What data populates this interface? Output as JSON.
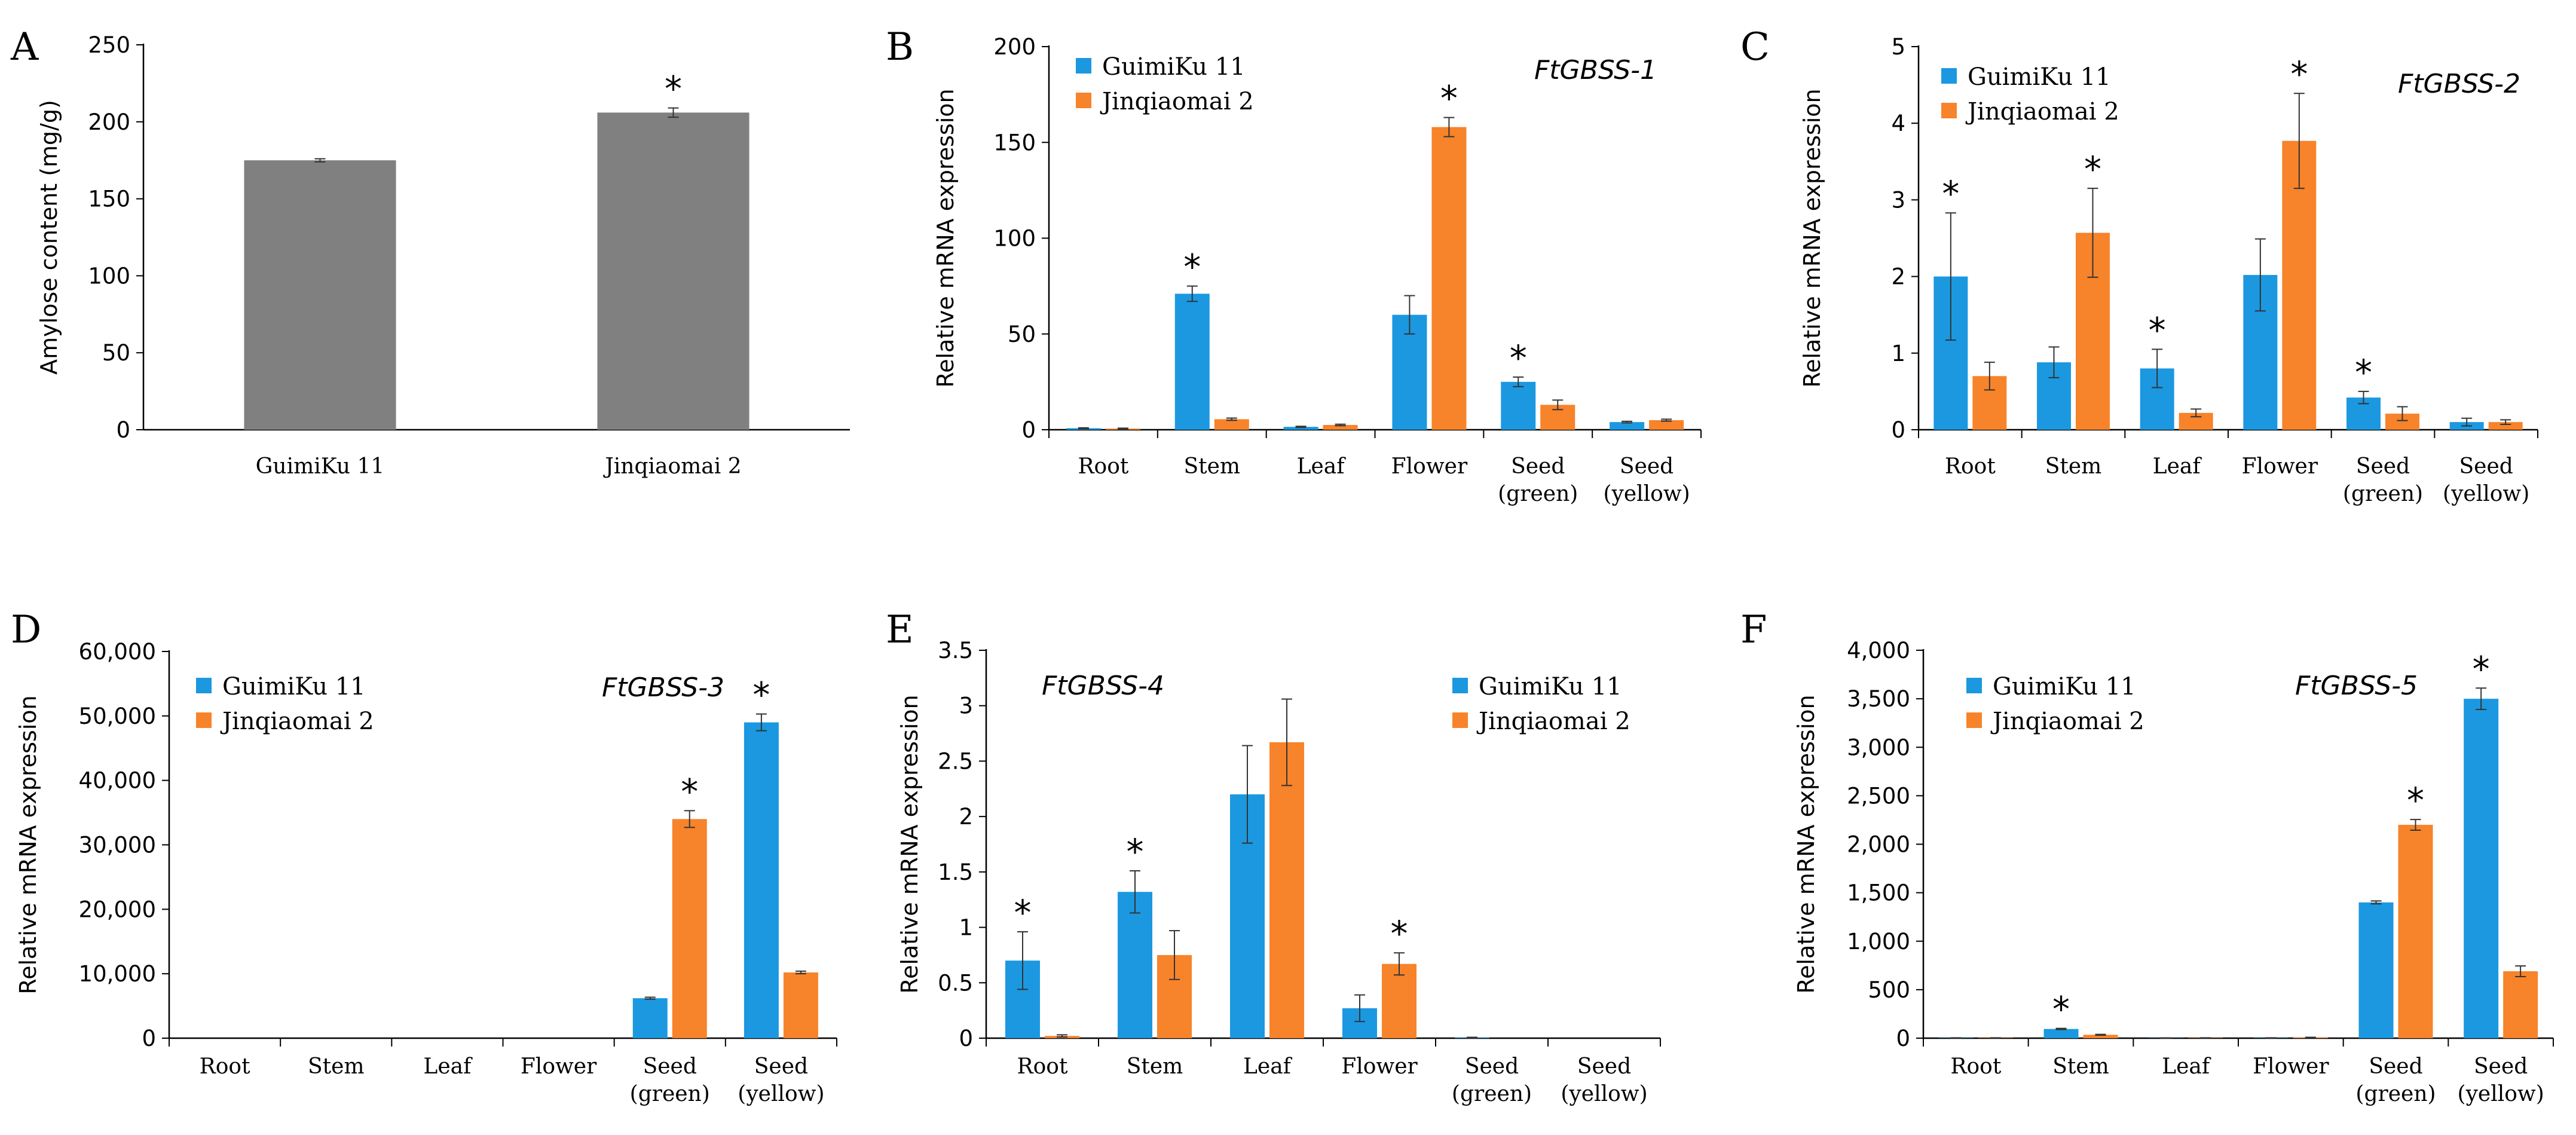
{
  "colors": {
    "guimiku": "#1b98e0",
    "jinqiaomai": "#f7832a",
    "amylose": "#808080",
    "axis": "#000000"
  },
  "legend": {
    "series1": "GuimiKu 11",
    "series2": "Jinqiaomai 2"
  },
  "chart_data": [
    {
      "id": "A",
      "letter": "A",
      "type": "bar",
      "title": "",
      "ylabel": "Amylose content (mg/g)",
      "ylim": [
        0,
        250
      ],
      "ticks": [
        0,
        50,
        100,
        150,
        200,
        250
      ],
      "tick_labels": [
        "0",
        "50",
        "100",
        "150",
        "200",
        "250"
      ],
      "categories": [
        [
          "GuimiKu 11"
        ],
        [
          "Jinqiaomai 2"
        ]
      ],
      "series": [
        {
          "name": "Amylose",
          "color": "#808080",
          "values": [
            175,
            206
          ],
          "errors": [
            1,
            3
          ],
          "stars": [
            false,
            true
          ]
        }
      ]
    },
    {
      "id": "B",
      "letter": "B",
      "type": "bar",
      "title": "FtGBSS-1",
      "ylabel": "Relative mRNA expression",
      "ylim": [
        0,
        200
      ],
      "ticks": [
        0,
        50,
        100,
        150,
        200
      ],
      "tick_labels": [
        "0",
        "50",
        "100",
        "150",
        "200"
      ],
      "categories": [
        [
          "Root"
        ],
        [
          "Stem"
        ],
        [
          "Leaf"
        ],
        [
          "Flower"
        ],
        [
          "Seed",
          "(green)"
        ],
        [
          "Seed",
          "(yellow)"
        ]
      ],
      "series": [
        {
          "name": "GuimiKu 11",
          "values": [
            0.8,
            71,
            1.5,
            60,
            25,
            4
          ],
          "errors": [
            0.2,
            4,
            0.3,
            10,
            2.5,
            0.4
          ],
          "stars": [
            false,
            true,
            false,
            false,
            true,
            false
          ]
        },
        {
          "name": "Jinqiaomai 2",
          "values": [
            0.6,
            5.5,
            2.5,
            158,
            13,
            5
          ],
          "errors": [
            0.2,
            0.6,
            0.4,
            5,
            2.5,
            0.5
          ],
          "stars": [
            false,
            false,
            false,
            true,
            false,
            false
          ]
        }
      ]
    },
    {
      "id": "C",
      "letter": "C",
      "type": "bar",
      "title": "FtGBSS-2",
      "ylabel": "Relative mRNA expression",
      "ylim": [
        0,
        5
      ],
      "ticks": [
        0,
        1,
        2,
        3,
        4,
        5
      ],
      "tick_labels": [
        "0",
        "1",
        "2",
        "3",
        "4",
        "5"
      ],
      "categories": [
        [
          "Root"
        ],
        [
          "Stem"
        ],
        [
          "Leaf"
        ],
        [
          "Flower"
        ],
        [
          "Seed",
          "(green)"
        ],
        [
          "Seed",
          "(yellow)"
        ]
      ],
      "series": [
        {
          "name": "GuimiKu 11",
          "values": [
            2.0,
            0.88,
            0.8,
            2.02,
            0.42,
            0.1
          ],
          "errors": [
            0.83,
            0.2,
            0.25,
            0.47,
            0.08,
            0.05
          ],
          "stars": [
            true,
            false,
            true,
            false,
            true,
            false
          ]
        },
        {
          "name": "Jinqiaomai 2",
          "values": [
            0.7,
            2.57,
            0.22,
            3.77,
            0.21,
            0.1
          ],
          "errors": [
            0.18,
            0.58,
            0.05,
            0.62,
            0.09,
            0.03
          ],
          "stars": [
            false,
            true,
            false,
            true,
            false,
            false
          ]
        }
      ]
    },
    {
      "id": "D",
      "letter": "D",
      "type": "bar",
      "title": "FtGBSS-3",
      "ylabel": "Relative mRNA expression",
      "ylim": [
        0,
        60000
      ],
      "ticks": [
        0,
        10000,
        20000,
        30000,
        40000,
        50000,
        60000
      ],
      "tick_labels": [
        "0",
        "10,000",
        "20,000",
        "30,000",
        "40,000",
        "50,000",
        "60,000"
      ],
      "categories": [
        [
          "Root"
        ],
        [
          "Stem"
        ],
        [
          "Leaf"
        ],
        [
          "Flower"
        ],
        [
          "Seed",
          "(green)"
        ],
        [
          "Seed",
          "(yellow)"
        ]
      ],
      "series": [
        {
          "name": "GuimiKu 11",
          "values": [
            0,
            0,
            0,
            0,
            6200,
            49000
          ],
          "errors": [
            0,
            0,
            0,
            0,
            150,
            1300
          ],
          "stars": [
            false,
            false,
            false,
            false,
            false,
            true
          ]
        },
        {
          "name": "Jinqiaomai 2",
          "values": [
            0,
            0,
            0,
            0,
            34000,
            10200
          ],
          "errors": [
            0,
            0,
            0,
            0,
            1300,
            200
          ],
          "stars": [
            false,
            false,
            false,
            false,
            true,
            false
          ]
        }
      ]
    },
    {
      "id": "E",
      "letter": "E",
      "type": "bar",
      "title": "FtGBSS-4",
      "ylabel": "Relative mRNA expression",
      "ylim": [
        0,
        3.5
      ],
      "ticks": [
        0,
        0.5,
        1,
        1.5,
        2,
        2.5,
        3,
        3.5
      ],
      "tick_labels": [
        "0",
        "0.5",
        "1",
        "1.5",
        "2",
        "2.5",
        "3",
        "3.5"
      ],
      "categories": [
        [
          "Root"
        ],
        [
          "Stem"
        ],
        [
          "Leaf"
        ],
        [
          "Flower"
        ],
        [
          "Seed",
          "(green)"
        ],
        [
          "Seed",
          "(yellow)"
        ]
      ],
      "series": [
        {
          "name": "GuimiKu 11",
          "values": [
            0.7,
            1.32,
            2.2,
            0.27,
            0.005,
            0
          ],
          "errors": [
            0.26,
            0.19,
            0.44,
            0.12,
            0.003,
            0
          ],
          "stars": [
            true,
            true,
            false,
            false,
            false,
            false
          ]
        },
        {
          "name": "Jinqiaomai 2",
          "values": [
            0.02,
            0.75,
            2.67,
            0.67,
            0,
            0
          ],
          "errors": [
            0.01,
            0.22,
            0.39,
            0.1,
            0,
            0
          ],
          "stars": [
            false,
            false,
            false,
            true,
            false,
            false
          ]
        }
      ]
    },
    {
      "id": "F",
      "letter": "F",
      "type": "bar",
      "title": "FtGBSS-5",
      "ylabel": "Relative mRNA expression",
      "ylim": [
        0,
        4000
      ],
      "ticks": [
        0,
        500,
        1000,
        1500,
        2000,
        2500,
        3000,
        3500,
        4000
      ],
      "tick_labels": [
        "0",
        "500",
        "1,000",
        "1,500",
        "2,000",
        "2,500",
        "3,000",
        "3,500",
        "4,000"
      ],
      "categories": [
        [
          "Root"
        ],
        [
          "Stem"
        ],
        [
          "Leaf"
        ],
        [
          "Flower"
        ],
        [
          "Seed",
          "(green)"
        ],
        [
          "Seed",
          "(yellow)"
        ]
      ],
      "series": [
        {
          "name": "GuimiKu 11",
          "values": [
            3,
            95,
            2,
            3,
            1400,
            3500
          ],
          "errors": [
            1,
            6,
            1,
            1,
            15,
            110
          ],
          "stars": [
            false,
            true,
            false,
            false,
            false,
            true
          ]
        },
        {
          "name": "Jinqiaomai 2",
          "values": [
            3,
            35,
            3,
            7,
            2200,
            690
          ],
          "errors": [
            1,
            4,
            1,
            2,
            55,
            55
          ],
          "stars": [
            false,
            false,
            false,
            false,
            true,
            false
          ]
        }
      ]
    }
  ]
}
